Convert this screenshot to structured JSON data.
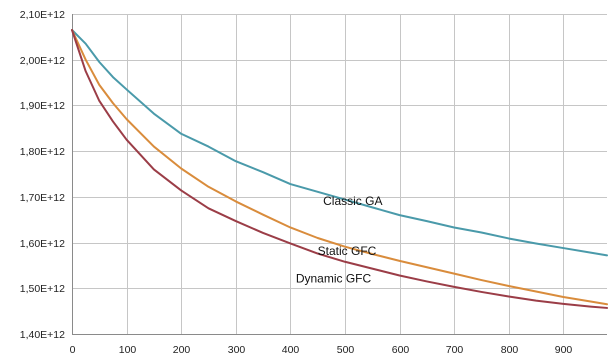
{
  "chart_data": {
    "type": "line",
    "title": "",
    "xlabel": "",
    "ylabel": "",
    "xlim": [
      0,
      980
    ],
    "ylim": [
      1400000000000.0,
      2100000000000.0
    ],
    "x_ticks": [
      0,
      100,
      200,
      300,
      400,
      500,
      600,
      700,
      800,
      900
    ],
    "x_tick_labels": [
      "0",
      "100",
      "200",
      "300",
      "400",
      "500",
      "600",
      "700",
      "800",
      "900"
    ],
    "y_ticks": [
      1400000000000.0,
      1500000000000.0,
      1600000000000.0,
      1700000000000.0,
      1800000000000.0,
      1900000000000.0,
      2000000000000.0,
      2100000000000.0
    ],
    "y_tick_labels": [
      "1,40E+12",
      "1,50E+12",
      "1,60E+12",
      "1,70E+12",
      "1,80E+12",
      "1,90E+12",
      "2,00E+12",
      "2,10E+12"
    ],
    "grid": true,
    "legend": "none (series labelled directly on the plot)",
    "series": [
      {
        "name": "Classic GA",
        "color": "#4a9aaa",
        "x": [
          0,
          25,
          50,
          75,
          100,
          150,
          200,
          250,
          300,
          350,
          400,
          450,
          500,
          550,
          600,
          650,
          700,
          750,
          800,
          850,
          900,
          950,
          980
        ],
        "y": [
          2065000000000.0,
          2035000000000.0,
          1995000000000.0,
          1962000000000.0,
          1935000000000.0,
          1882000000000.0,
          1838000000000.0,
          1810000000000.0,
          1778000000000.0,
          1754000000000.0,
          1728000000000.0,
          1711000000000.0,
          1694000000000.0,
          1677000000000.0,
          1660000000000.0,
          1647000000000.0,
          1633000000000.0,
          1622000000000.0,
          1609000000000.0,
          1598000000000.0,
          1588000000000.0,
          1578000000000.0,
          1572000000000.0
        ]
      },
      {
        "name": "Static GFC",
        "color": "#d98c3c",
        "x": [
          0,
          25,
          50,
          75,
          100,
          150,
          200,
          250,
          300,
          350,
          400,
          450,
          500,
          550,
          600,
          650,
          700,
          750,
          800,
          850,
          900,
          950,
          980
        ],
        "y": [
          2065000000000.0,
          2000000000000.0,
          1945000000000.0,
          1905000000000.0,
          1870000000000.0,
          1810000000000.0,
          1762000000000.0,
          1722000000000.0,
          1690000000000.0,
          1661000000000.0,
          1633000000000.0,
          1610000000000.0,
          1591000000000.0,
          1575000000000.0,
          1560000000000.0,
          1546000000000.0,
          1532000000000.0,
          1518000000000.0,
          1505000000000.0,
          1493000000000.0,
          1481000000000.0,
          1471000000000.0,
          1465000000000.0
        ]
      },
      {
        "name": "Dynamic GFC",
        "color": "#9b3d47",
        "x": [
          0,
          25,
          50,
          75,
          100,
          150,
          200,
          250,
          300,
          350,
          400,
          450,
          500,
          550,
          600,
          650,
          700,
          750,
          800,
          850,
          900,
          950,
          980
        ],
        "y": [
          2065000000000.0,
          1975000000000.0,
          1910000000000.0,
          1865000000000.0,
          1825000000000.0,
          1760000000000.0,
          1714000000000.0,
          1675000000000.0,
          1647000000000.0,
          1621000000000.0,
          1598000000000.0,
          1576000000000.0,
          1558000000000.0,
          1543000000000.0,
          1528000000000.0,
          1515000000000.0,
          1503000000000.0,
          1492000000000.0,
          1482000000000.0,
          1473000000000.0,
          1466000000000.0,
          1460000000000.0,
          1457000000000.0
        ]
      }
    ],
    "annotations": [
      {
        "text": "Classic GA",
        "x": 460,
        "y": 1682000000000.0
      },
      {
        "text": "Static GFC",
        "x": 450,
        "y": 1573000000000.0
      },
      {
        "text": "Dynamic GFC",
        "x": 410,
        "y": 1513000000000.0
      }
    ]
  }
}
